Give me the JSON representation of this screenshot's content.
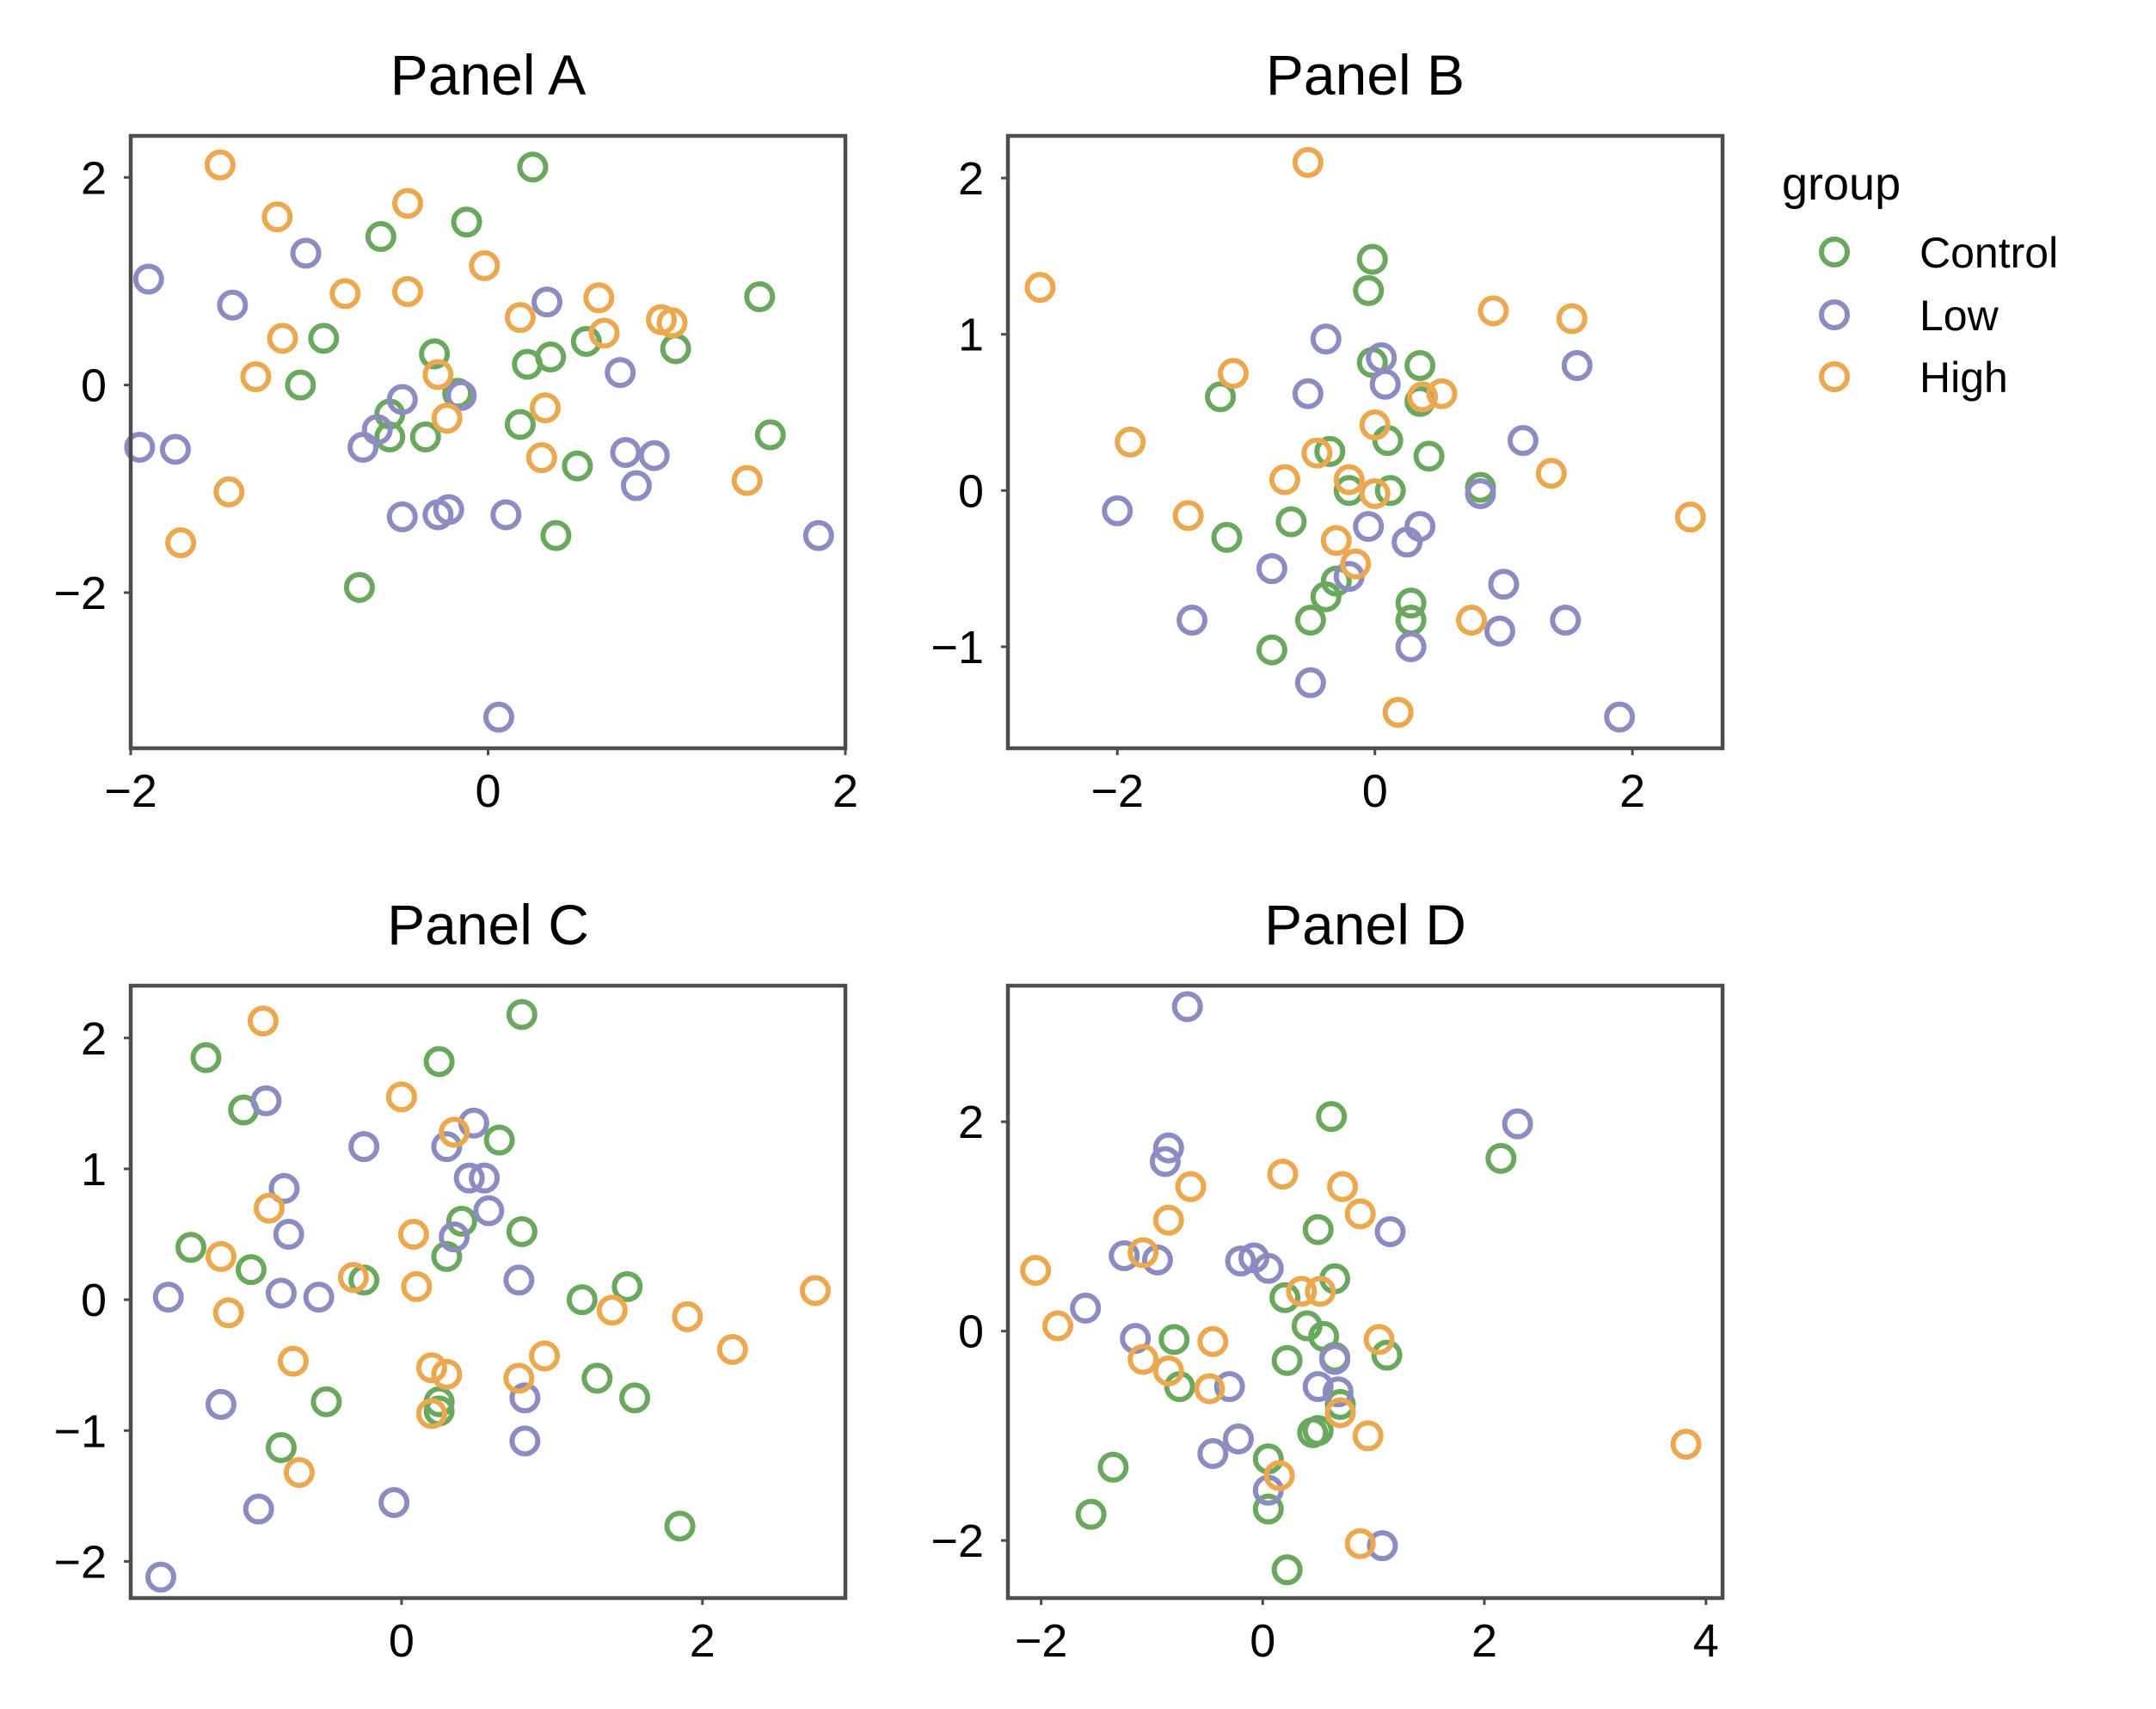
{
  "colors": {
    "Control": "#6aa85e",
    "Low": "#8d8cc2",
    "High": "#eca84f"
  },
  "legend": {
    "title": "group",
    "position": "right",
    "entries": [
      "Control",
      "Low",
      "High"
    ]
  },
  "chart_data": [
    {
      "type": "scatter",
      "title": "Panel A",
      "xlim": [
        -2.0,
        2.0
      ],
      "ylim": [
        -3.5,
        2.4
      ],
      "xticks": [
        -2,
        0,
        2
      ],
      "yticks": [
        -2,
        0,
        2
      ],
      "xtick_labels": [
        "−2",
        "0",
        "2"
      ],
      "ytick_labels": [
        "−2",
        "0",
        "2"
      ],
      "series": [
        {
          "name": "Control",
          "points": [
            [
              0.25,
              2.1
            ],
            [
              -0.12,
              1.57
            ],
            [
              -0.6,
              1.43
            ],
            [
              1.52,
              0.85
            ],
            [
              -0.92,
              0.45
            ],
            [
              -1.05,
              0.0
            ],
            [
              -0.3,
              0.3
            ],
            [
              0.22,
              0.2
            ],
            [
              0.35,
              0.27
            ],
            [
              0.55,
              0.42
            ],
            [
              1.05,
              0.35
            ],
            [
              -0.55,
              -0.28
            ],
            [
              -0.55,
              -0.5
            ],
            [
              -0.35,
              -0.5
            ],
            [
              0.18,
              -0.38
            ],
            [
              0.5,
              -0.78
            ],
            [
              0.38,
              -1.45
            ],
            [
              1.58,
              -0.48
            ],
            [
              -0.72,
              -1.95
            ],
            [
              -0.17,
              -0.08
            ]
          ]
        },
        {
          "name": "Low",
          "points": [
            [
              -1.9,
              1.02
            ],
            [
              -1.02,
              1.27
            ],
            [
              -1.43,
              0.77
            ],
            [
              0.33,
              0.8
            ],
            [
              0.74,
              0.12
            ],
            [
              -0.48,
              -0.14
            ],
            [
              -0.15,
              -0.1
            ],
            [
              -0.62,
              -0.43
            ],
            [
              -0.7,
              -0.6
            ],
            [
              -1.95,
              -0.6
            ],
            [
              -1.75,
              -0.62
            ],
            [
              0.77,
              -0.65
            ],
            [
              0.93,
              -0.68
            ],
            [
              0.83,
              -0.97
            ],
            [
              -0.48,
              -1.27
            ],
            [
              -0.28,
              -1.25
            ],
            [
              -0.22,
              -1.2
            ],
            [
              0.1,
              -1.25
            ],
            [
              1.85,
              -1.45
            ],
            [
              0.06,
              -3.2
            ]
          ]
        },
        {
          "name": "High",
          "points": [
            [
              -1.5,
              2.12
            ],
            [
              -1.18,
              1.62
            ],
            [
              -0.45,
              1.75
            ],
            [
              -0.02,
              1.15
            ],
            [
              -0.8,
              0.88
            ],
            [
              -0.45,
              0.9
            ],
            [
              0.62,
              0.84
            ],
            [
              0.18,
              0.65
            ],
            [
              0.97,
              0.63
            ],
            [
              1.03,
              0.6
            ],
            [
              -1.15,
              0.45
            ],
            [
              0.65,
              0.5
            ],
            [
              -1.3,
              0.08
            ],
            [
              -0.28,
              0.1
            ],
            [
              -0.23,
              -0.32
            ],
            [
              0.32,
              -0.22
            ],
            [
              0.3,
              -0.7
            ],
            [
              1.45,
              -0.92
            ],
            [
              -1.45,
              -1.03
            ],
            [
              -1.72,
              -1.52
            ]
          ]
        }
      ]
    },
    {
      "type": "scatter",
      "title": "Panel B",
      "xlim": [
        -2.85,
        2.7
      ],
      "ylim": [
        -1.65,
        2.27
      ],
      "xticks": [
        -2,
        0,
        2
      ],
      "yticks": [
        -1,
        0,
        1,
        2
      ],
      "xtick_labels": [
        "−2",
        "0",
        "2"
      ],
      "ytick_labels": [
        "−1",
        "0",
        "1",
        "2"
      ],
      "series": [
        {
          "name": "Control",
          "points": [
            [
              -0.02,
              1.48
            ],
            [
              -0.05,
              1.28
            ],
            [
              -0.02,
              0.82
            ],
            [
              0.35,
              0.8
            ],
            [
              0.35,
              0.57
            ],
            [
              -1.2,
              0.6
            ],
            [
              0.1,
              0.32
            ],
            [
              -0.35,
              0.25
            ],
            [
              0.42,
              0.22
            ],
            [
              -0.2,
              0.0
            ],
            [
              0.12,
              0.0
            ],
            [
              0.82,
              0.02
            ],
            [
              -1.15,
              -0.3
            ],
            [
              -0.65,
              -0.2
            ],
            [
              -0.3,
              -0.58
            ],
            [
              -0.38,
              -0.68
            ],
            [
              0.28,
              -0.72
            ],
            [
              0.28,
              -0.83
            ],
            [
              -0.5,
              -0.83
            ],
            [
              -0.8,
              -1.02
            ]
          ]
        },
        {
          "name": "Low",
          "points": [
            [
              -0.38,
              0.97
            ],
            [
              0.05,
              0.85
            ],
            [
              0.08,
              0.68
            ],
            [
              -0.52,
              0.62
            ],
            [
              1.57,
              0.8
            ],
            [
              1.15,
              0.32
            ],
            [
              0.82,
              -0.02
            ],
            [
              -0.05,
              -0.23
            ],
            [
              0.35,
              -0.23
            ],
            [
              0.25,
              -0.33
            ],
            [
              -2.0,
              -0.13
            ],
            [
              -0.8,
              -0.5
            ],
            [
              -0.2,
              -0.55
            ],
            [
              1.0,
              -0.6
            ],
            [
              -1.42,
              -0.83
            ],
            [
              1.48,
              -0.83
            ],
            [
              0.97,
              -0.9
            ],
            [
              0.28,
              -1.0
            ],
            [
              -0.5,
              -1.23
            ],
            [
              1.9,
              -1.45
            ]
          ]
        },
        {
          "name": "High",
          "points": [
            [
              -0.52,
              2.1
            ],
            [
              -2.6,
              1.3
            ],
            [
              0.92,
              1.15
            ],
            [
              1.53,
              1.1
            ],
            [
              -1.1,
              0.75
            ],
            [
              0.37,
              0.6
            ],
            [
              0.52,
              0.62
            ],
            [
              -1.9,
              0.31
            ],
            [
              0.0,
              0.42
            ],
            [
              -0.45,
              0.24
            ],
            [
              -0.7,
              0.07
            ],
            [
              -0.2,
              0.07
            ],
            [
              1.37,
              0.11
            ],
            [
              0.0,
              -0.02
            ],
            [
              -1.45,
              -0.16
            ],
            [
              2.45,
              -0.17
            ],
            [
              -0.3,
              -0.32
            ],
            [
              -0.15,
              -0.47
            ],
            [
              0.75,
              -0.83
            ],
            [
              0.18,
              -1.42
            ]
          ]
        }
      ]
    },
    {
      "type": "scatter",
      "title": "Panel C",
      "xlim": [
        -1.8,
        2.95
      ],
      "ylim": [
        -2.28,
        2.4
      ],
      "xticks": [
        0,
        2
      ],
      "yticks": [
        -2,
        -1,
        0,
        1,
        2
      ],
      "xtick_labels": [
        "0",
        "2"
      ],
      "ytick_labels": [
        "−2",
        "−1",
        "0",
        "1",
        "2"
      ],
      "series": [
        {
          "name": "Control",
          "points": [
            [
              0.8,
              2.18
            ],
            [
              -1.3,
              1.85
            ],
            [
              0.25,
              1.82
            ],
            [
              -1.05,
              1.45
            ],
            [
              0.65,
              1.22
            ],
            [
              -1.4,
              0.4
            ],
            [
              0.4,
              0.6
            ],
            [
              0.8,
              0.52
            ],
            [
              0.3,
              0.33
            ],
            [
              -1.0,
              0.23
            ],
            [
              -0.25,
              0.15
            ],
            [
              1.2,
              0.0
            ],
            [
              1.5,
              0.1
            ],
            [
              -0.5,
              -0.78
            ],
            [
              1.3,
              -0.6
            ],
            [
              1.55,
              -0.75
            ],
            [
              0.25,
              -0.85
            ],
            [
              0.25,
              -0.78
            ],
            [
              -0.8,
              -1.13
            ],
            [
              1.85,
              -1.73
            ]
          ]
        },
        {
          "name": "Low",
          "points": [
            [
              -0.9,
              1.52
            ],
            [
              -0.25,
              1.17
            ],
            [
              0.48,
              1.35
            ],
            [
              0.3,
              1.17
            ],
            [
              0.45,
              0.93
            ],
            [
              0.55,
              0.93
            ],
            [
              0.58,
              0.68
            ],
            [
              -0.78,
              0.85
            ],
            [
              0.35,
              0.48
            ],
            [
              -0.75,
              0.5
            ],
            [
              -1.55,
              0.02
            ],
            [
              -0.8,
              0.05
            ],
            [
              -0.55,
              0.02
            ],
            [
              0.78,
              0.15
            ],
            [
              -1.2,
              -0.8
            ],
            [
              0.82,
              -0.75
            ],
            [
              0.82,
              -1.08
            ],
            [
              -0.95,
              -1.6
            ],
            [
              -0.05,
              -1.55
            ],
            [
              -1.6,
              -2.12
            ]
          ]
        },
        {
          "name": "High",
          "points": [
            [
              -0.92,
              2.13
            ],
            [
              0.0,
              1.55
            ],
            [
              0.35,
              1.28
            ],
            [
              -0.88,
              0.7
            ],
            [
              0.08,
              0.5
            ],
            [
              -1.2,
              0.33
            ],
            [
              -0.32,
              0.17
            ],
            [
              0.1,
              0.1
            ],
            [
              -1.15,
              -0.1
            ],
            [
              1.4,
              -0.08
            ],
            [
              1.9,
              -0.13
            ],
            [
              2.2,
              -0.38
            ],
            [
              2.75,
              0.07
            ],
            [
              -0.72,
              -0.47
            ],
            [
              0.95,
              -0.43
            ],
            [
              0.2,
              -0.52
            ],
            [
              0.3,
              -0.57
            ],
            [
              0.78,
              -0.6
            ],
            [
              0.2,
              -0.87
            ],
            [
              -0.68,
              -1.32
            ]
          ]
        }
      ]
    },
    {
      "type": "scatter",
      "title": "Panel D",
      "xlim": [
        -2.3,
        4.15
      ],
      "ylim": [
        -2.55,
        3.3
      ],
      "xticks": [
        -2,
        0,
        2,
        4
      ],
      "yticks": [
        -2,
        0,
        2
      ],
      "xtick_labels": [
        "−2",
        "0",
        "2",
        "4"
      ],
      "ytick_labels": [
        "−2",
        "0",
        "2"
      ],
      "series": [
        {
          "name": "Control",
          "points": [
            [
              0.62,
              2.05
            ],
            [
              2.15,
              1.65
            ],
            [
              0.5,
              0.97
            ],
            [
              0.65,
              0.5
            ],
            [
              0.2,
              0.32
            ],
            [
              0.4,
              0.05
            ],
            [
              0.55,
              -0.05
            ],
            [
              -0.8,
              -0.08
            ],
            [
              1.12,
              -0.23
            ],
            [
              0.22,
              -0.28
            ],
            [
              -0.75,
              -0.53
            ],
            [
              0.7,
              -0.7
            ],
            [
              0.5,
              -0.95
            ],
            [
              0.45,
              -0.97
            ],
            [
              -1.35,
              -1.3
            ],
            [
              0.05,
              -1.22
            ],
            [
              0.05,
              -1.7
            ],
            [
              -1.55,
              -1.75
            ],
            [
              0.22,
              -2.28
            ],
            [
              0.65,
              -0.25
            ]
          ]
        },
        {
          "name": "Low",
          "points": [
            [
              -0.68,
              3.1
            ],
            [
              -0.85,
              1.75
            ],
            [
              -0.88,
              1.62
            ],
            [
              2.3,
              1.98
            ],
            [
              1.15,
              0.95
            ],
            [
              -1.25,
              0.72
            ],
            [
              -0.95,
              0.68
            ],
            [
              -0.2,
              0.67
            ],
            [
              -0.08,
              0.7
            ],
            [
              0.05,
              0.6
            ],
            [
              -1.6,
              0.22
            ],
            [
              -1.15,
              -0.07
            ],
            [
              0.65,
              -0.27
            ],
            [
              0.5,
              -0.53
            ],
            [
              -0.3,
              -0.53
            ],
            [
              0.68,
              -0.58
            ],
            [
              -0.22,
              -1.03
            ],
            [
              -0.45,
              -1.17
            ],
            [
              0.05,
              -1.52
            ],
            [
              1.08,
              -2.05
            ]
          ]
        },
        {
          "name": "High",
          "points": [
            [
              -2.05,
              0.58
            ],
            [
              -1.85,
              0.05
            ],
            [
              -0.65,
              1.38
            ],
            [
              0.18,
              1.5
            ],
            [
              0.72,
              1.38
            ],
            [
              0.88,
              1.12
            ],
            [
              -0.85,
              1.06
            ],
            [
              -1.08,
              0.75
            ],
            [
              0.35,
              0.38
            ],
            [
              0.52,
              0.38
            ],
            [
              -0.45,
              -0.1
            ],
            [
              1.05,
              -0.08
            ],
            [
              -1.08,
              -0.27
            ],
            [
              -0.85,
              -0.38
            ],
            [
              -0.48,
              -0.55
            ],
            [
              0.7,
              -0.78
            ],
            [
              0.95,
              -1.0
            ],
            [
              0.15,
              -1.38
            ],
            [
              0.88,
              -2.03
            ],
            [
              3.82,
              -1.08
            ]
          ]
        }
      ]
    }
  ]
}
